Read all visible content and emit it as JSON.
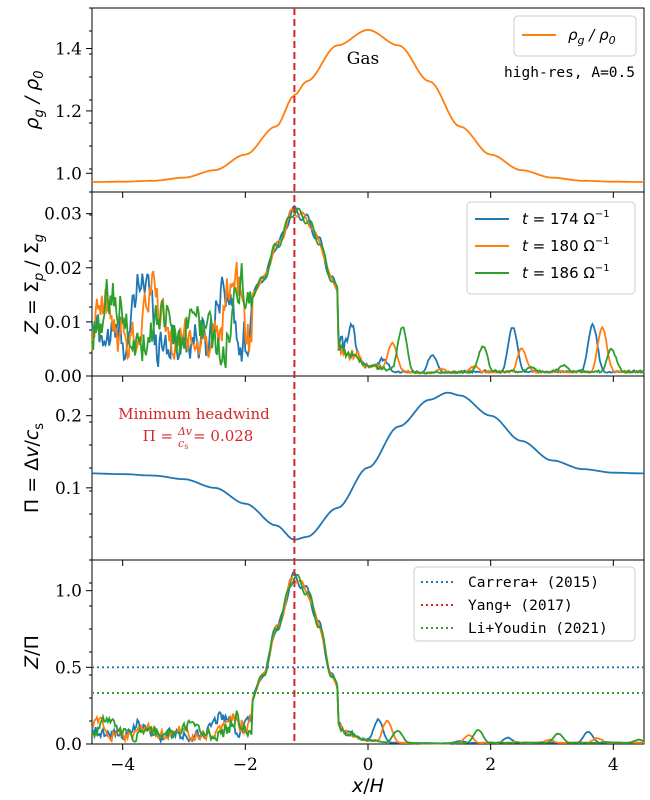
{
  "chart_data": [
    {
      "panel": "gas-density",
      "type": "line",
      "ylabel": "ρ_g / ρ_0",
      "xlim": [
        -4.5,
        4.5
      ],
      "ylim": [
        0.94,
        1.53
      ],
      "yticks": [
        {
          "v": 1.0,
          "t": "1.0"
        },
        {
          "v": 1.2,
          "t": "1.2"
        },
        {
          "v": 1.4,
          "t": "1.4"
        }
      ],
      "series": [
        {
          "name": "ρ_g / ρ_0",
          "color": "#ff7f0e",
          "x": [
            -4.5,
            -4,
            -3.5,
            -3,
            -2.5,
            -2,
            -1.5,
            -1.2,
            -1,
            -0.5,
            0,
            0.5,
            1,
            1.5,
            2,
            2.5,
            3,
            3.5,
            4,
            4.5
          ],
          "y": [
            0.972,
            0.973,
            0.976,
            0.986,
            1.01,
            1.06,
            1.15,
            1.25,
            1.295,
            1.41,
            1.46,
            1.41,
            1.295,
            1.15,
            1.06,
            1.01,
            0.986,
            0.976,
            0.973,
            0.972
          ]
        }
      ],
      "annotation": "Gas",
      "text_label": "high-res, A=0.5",
      "legend": [
        {
          "label": "ρg / ρ0"
        }
      ]
    },
    {
      "panel": "metallicity",
      "type": "line",
      "ylabel": "Z = Σp / Σg",
      "xlim": [
        -4.5,
        4.5
      ],
      "ylim": [
        0.0,
        0.034
      ],
      "yticks": [
        {
          "v": 0.0,
          "t": "0.00"
        },
        {
          "v": 0.01,
          "t": "0.01"
        },
        {
          "v": 0.02,
          "t": "0.02"
        },
        {
          "v": 0.03,
          "t": "0.03"
        }
      ],
      "series": [
        {
          "name": "t = 174 Ω⁻¹",
          "color": "#1f77b4"
        },
        {
          "name": "t = 180 Ω⁻¹",
          "color": "#ff7f0e"
        },
        {
          "name": "t = 186 Ω⁻¹",
          "color": "#2ca02c"
        }
      ],
      "envelope": {
        "x": [
          -4.5,
          -4,
          -3,
          -2.5,
          -2,
          -1.7,
          -1.5,
          -1.2,
          -1,
          -0.8,
          -0.6,
          -0.3,
          0,
          0.5,
          1,
          2,
          3,
          4,
          4.5
        ],
        "y": [
          0.013,
          0.013,
          0.012,
          0.012,
          0.013,
          0.018,
          0.024,
          0.0305,
          0.029,
          0.025,
          0.018,
          0.01,
          0.005,
          0.002,
          0.0015,
          0.002,
          0.002,
          0.002,
          0.002
        ]
      }
    },
    {
      "panel": "headwind",
      "type": "line",
      "ylabel": "Π = Δv/c_s",
      "xlim": [
        -4.5,
        4.5
      ],
      "ylim": [
        0.0,
        0.255
      ],
      "yticks": [
        {
          "v": 0.1,
          "t": "0.1"
        },
        {
          "v": 0.2,
          "t": "0.2"
        }
      ],
      "series": [
        {
          "name": "Π",
          "color": "#1f77b4",
          "x": [
            -4.5,
            -4,
            -3.5,
            -3,
            -2.5,
            -2,
            -1.5,
            -1.2,
            -1,
            -0.5,
            0,
            0.5,
            1,
            1.3,
            1.5,
            2,
            2.5,
            3,
            3.5,
            4,
            4.5
          ],
          "y": [
            0.12,
            0.119,
            0.117,
            0.112,
            0.1,
            0.078,
            0.048,
            0.028,
            0.032,
            0.072,
            0.128,
            0.185,
            0.222,
            0.232,
            0.228,
            0.2,
            0.165,
            0.138,
            0.126,
            0.121,
            0.12
          ]
        }
      ],
      "annotation": [
        "Minimum headwind",
        "Π = Δv/c_s = 0.028"
      ]
    },
    {
      "panel": "ratio",
      "type": "line",
      "ylabel": "Z/Π",
      "xlabel": "x/H",
      "xlim": [
        -4.5,
        4.5
      ],
      "ylim": [
        0.0,
        1.2
      ],
      "yticks": [
        {
          "v": 0.0,
          "t": "0.0"
        },
        {
          "v": 0.5,
          "t": "0.5"
        },
        {
          "v": 1.0,
          "t": "1.0"
        }
      ],
      "xticks": [
        {
          "v": -4,
          "t": "−4"
        },
        {
          "v": -2,
          "t": "−2"
        },
        {
          "v": 0,
          "t": "0"
        },
        {
          "v": 2,
          "t": "2"
        },
        {
          "v": 4,
          "t": "4"
        }
      ],
      "hlines": [
        {
          "name": "Carrera+ (2015)",
          "y": 0.5,
          "color": "#1f77b4"
        },
        {
          "name": "Yang+ (2017)",
          "y": 0.333,
          "color": "#d62728"
        },
        {
          "name": "Li+Youdin (2021)",
          "y": 0.333,
          "color": "#2ca02c"
        }
      ],
      "series_colors": [
        "#1f77b4",
        "#ff7f0e",
        "#2ca02c"
      ],
      "envelope": {
        "x": [
          -4.5,
          -4,
          -3,
          -2.5,
          -2,
          -1.7,
          -1.5,
          -1.2,
          -1,
          -0.8,
          -0.6,
          -0.3,
          0,
          0.5,
          1,
          2,
          3,
          4,
          4.5
        ],
        "y": [
          0.11,
          0.11,
          0.1,
          0.12,
          0.2,
          0.45,
          0.75,
          1.09,
          1.0,
          0.78,
          0.45,
          0.15,
          0.06,
          0.02,
          0.01,
          0.02,
          0.02,
          0.02,
          0.02
        ]
      }
    }
  ],
  "vline": {
    "x": -1.2,
    "color": "#d62728"
  }
}
